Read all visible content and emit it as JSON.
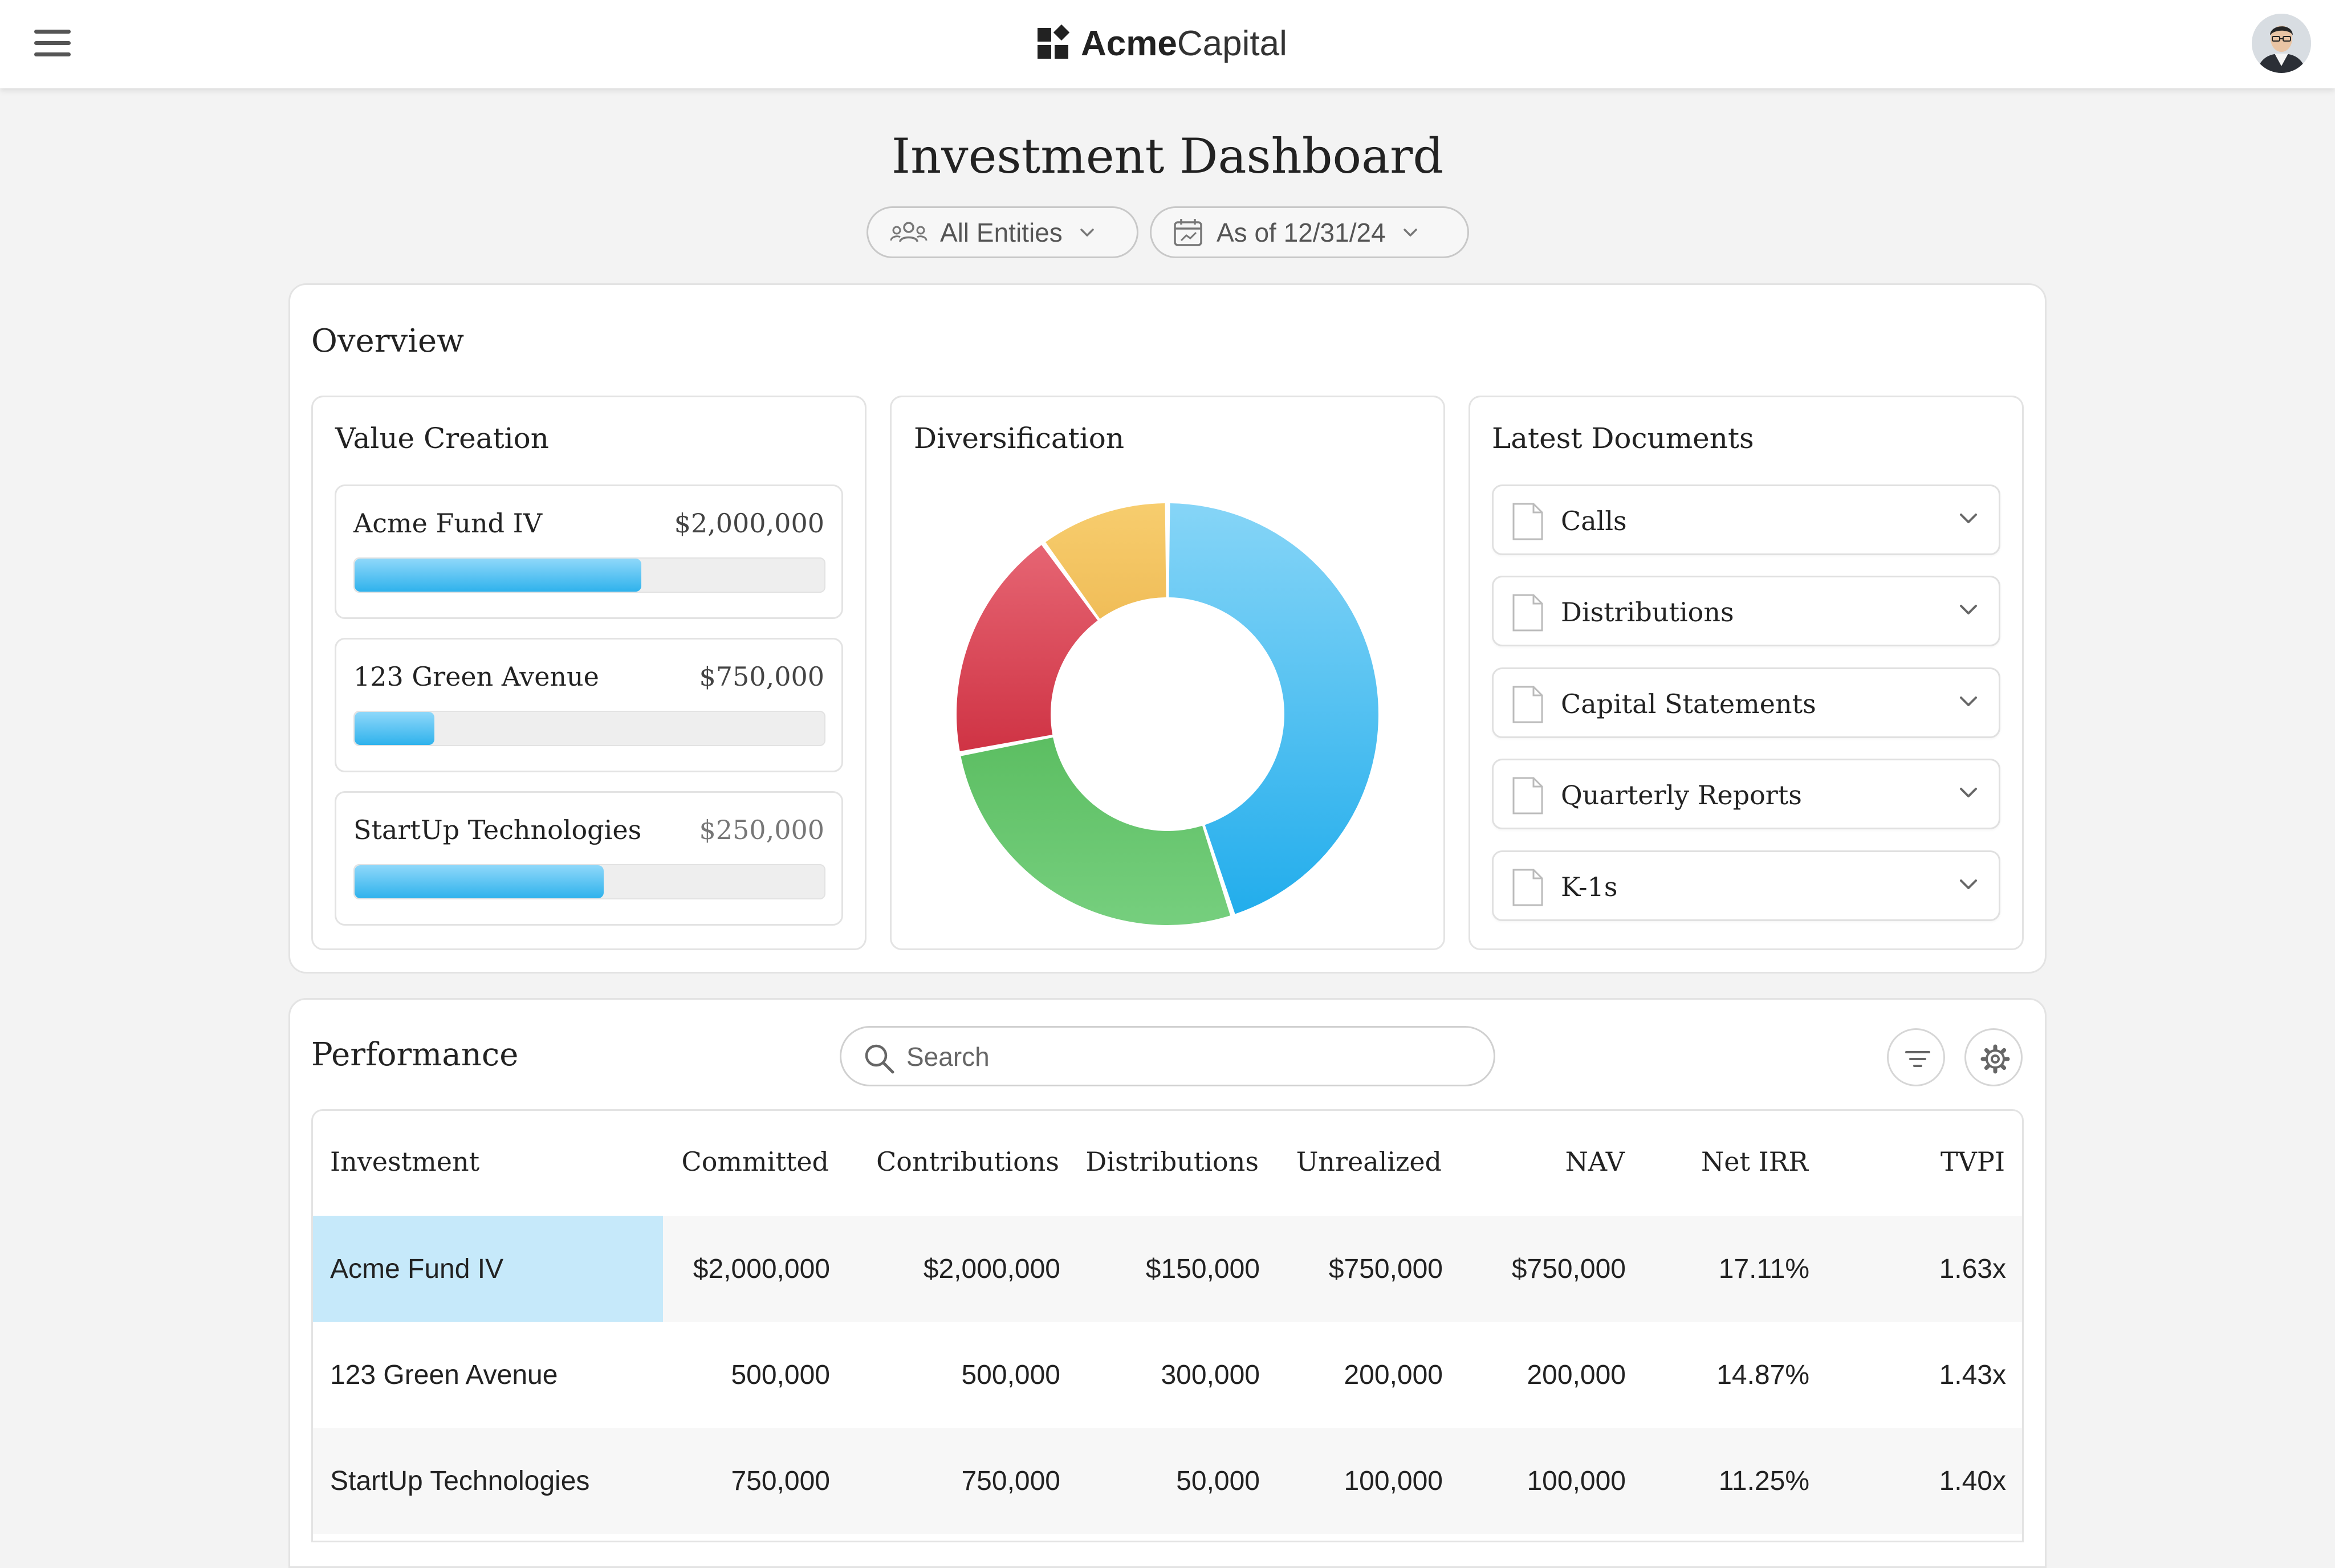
{
  "header": {
    "brand_bold": "Acme",
    "brand_rest": "Capital",
    "menu_icon": "hamburger-menu-icon",
    "avatar_icon": "user-avatar"
  },
  "page": {
    "title": "Investment Dashboard",
    "filters": {
      "entities": "All Entities",
      "as_of": "As of 12/31/24"
    }
  },
  "overview": {
    "title": "Overview",
    "value_creation": {
      "title": "Value Creation",
      "items": [
        {
          "name": "Acme Fund IV",
          "amount": "$2,000,000",
          "progress": 0.61
        },
        {
          "name": "123 Green Avenue",
          "amount": "$750,000",
          "progress": 0.17
        },
        {
          "name": "StartUp Technologies",
          "amount": "$250,000",
          "progress": 0.53
        }
      ]
    },
    "diversification": {
      "title": "Diversification",
      "colors": {
        "blue": "#4bbcf0",
        "green": "#6cc873",
        "red": "#d94a5a",
        "yellow": "#f4c563"
      }
    },
    "documents": {
      "title": "Latest Documents",
      "items": [
        "Calls",
        "Distributions",
        "Capital Statements",
        "Quarterly Reports",
        "K-1s"
      ]
    }
  },
  "chart_data": {
    "type": "pie",
    "categories": [
      "",
      "",
      "",
      ""
    ],
    "values": [
      45,
      27,
      18,
      10
    ],
    "colors": [
      "#4bbcf0",
      "#6cc873",
      "#d94a5a",
      "#f4c563"
    ],
    "donut": true,
    "title": "Diversification"
  },
  "performance": {
    "title": "Performance",
    "search_placeholder": "Search",
    "columns": [
      "Investment",
      "Committed",
      "Contributions",
      "Distributions",
      "Unrealized",
      "NAV",
      "Net IRR",
      "TVPI"
    ],
    "rows": [
      [
        "Acme Fund IV",
        "$2,000,000",
        "$2,000,000",
        "$150,000",
        "$750,000",
        "$750,000",
        "17.11%",
        "1.63x"
      ],
      [
        "123 Green Avenue",
        "500,000",
        "500,000",
        "300,000",
        "200,000",
        "200,000",
        "14.87%",
        "1.43x"
      ],
      [
        "StartUp Technologies",
        "750,000",
        "750,000",
        "50,000",
        "100,000",
        "100,000",
        "11.25%",
        "1.40x"
      ]
    ]
  }
}
